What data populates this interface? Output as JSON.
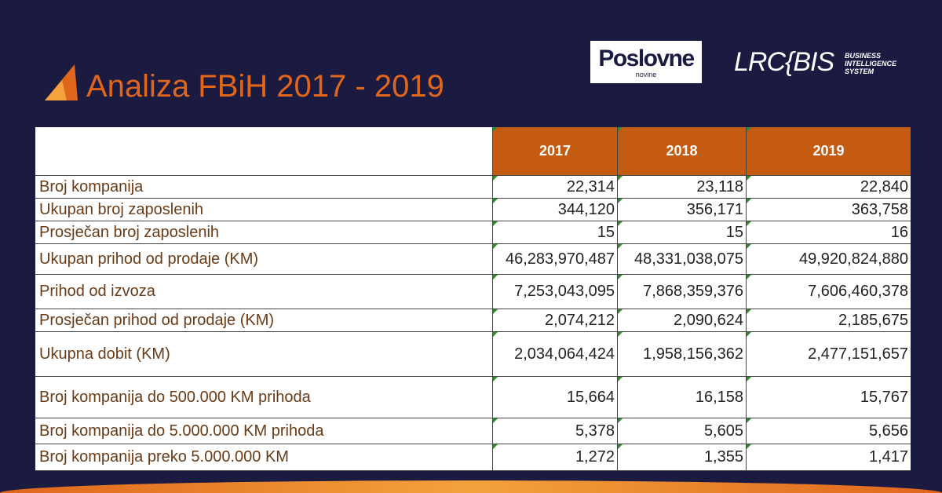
{
  "header": {
    "title": "Analiza FBiH 2017 - 2019"
  },
  "logos": {
    "poslovne": {
      "name": "Poslovne",
      "sub": "novine"
    },
    "lrc": {
      "name": "LRC{BIS",
      "tagline": [
        "BUSINESS",
        "INTELLIGENCE",
        "SYSTEM"
      ]
    }
  },
  "table": {
    "columns": [
      "2017",
      "2018",
      "2019"
    ],
    "rows": [
      {
        "label": "Broj kompanija",
        "values": [
          "22,314",
          "23,118",
          "22,840"
        ]
      },
      {
        "label": "Ukupan broj zaposlenih",
        "values": [
          "344,120",
          "356,171",
          "363,758"
        ]
      },
      {
        "label": "Prosječan broj zaposlenih",
        "values": [
          "15",
          "15",
          "16"
        ]
      },
      {
        "label": "Ukupan prihod od prodaje (KM)",
        "values": [
          "46,283,970,487",
          "48,331,038,075",
          "49,920,824,880"
        ]
      },
      {
        "label": "Prihod od izvoza",
        "values": [
          "7,253,043,095",
          "7,868,359,376",
          "7,606,460,378"
        ]
      },
      {
        "label": "Prosječan prihod od prodaje (KM)",
        "values": [
          "2,074,212",
          "2,090,624",
          "2,185,675"
        ]
      },
      {
        "label": "Ukupna dobit (KM)",
        "values": [
          "2,034,064,424",
          "1,958,156,362",
          "2,477,151,657"
        ]
      },
      {
        "label": "Broj kompanija do 500.000 KM prihoda",
        "values": [
          "15,664",
          "16,158",
          "15,767"
        ]
      },
      {
        "label": "Broj kompanija do 5.000.000 KM prihoda",
        "values": [
          "5,378",
          "5,605",
          "5,656"
        ]
      },
      {
        "label": "Broj kompanija preko 5.000.000 KM",
        "values": [
          "1,272",
          "1,355",
          "1,417"
        ]
      }
    ]
  }
}
